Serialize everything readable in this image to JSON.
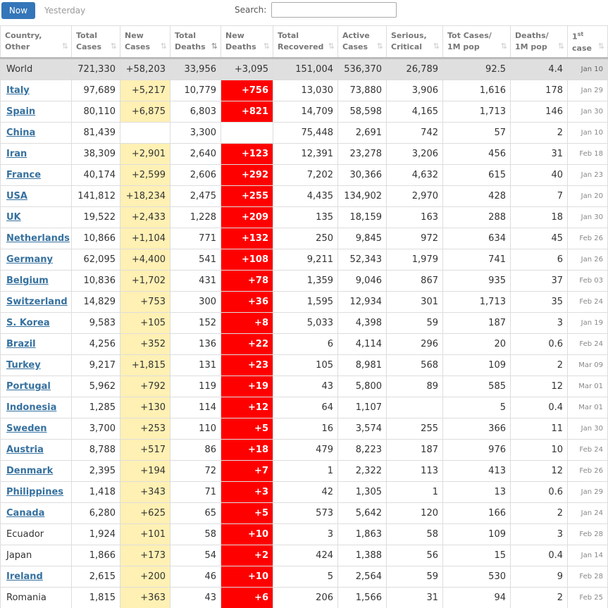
{
  "toolbar": {
    "tabs": [
      "Now",
      "Yesterday"
    ],
    "search_label": "Search:"
  },
  "table": {
    "headers": [
      {
        "top": "Country,",
        "bottom": "Other"
      },
      {
        "top": "Total",
        "bottom": "Cases"
      },
      {
        "top": "New",
        "bottom": "Cases"
      },
      {
        "top": "Total",
        "bottom": "Deaths"
      },
      {
        "top": "New",
        "bottom": "Deaths"
      },
      {
        "top": "Total",
        "bottom": "Recovered"
      },
      {
        "top": "Active",
        "bottom": "Cases"
      },
      {
        "top": "Serious,",
        "bottom": "Critical"
      },
      {
        "top": "Tot Cases/",
        "bottom": "1M pop"
      },
      {
        "top": "Deaths/",
        "bottom": "1M pop"
      },
      {
        "top": "1",
        "sup": "st",
        "bottom": "case"
      }
    ],
    "rows": [
      {
        "link": false,
        "total": true,
        "cells": [
          "World",
          "721,330",
          "+58,203",
          "33,956",
          "+3,095",
          "151,004",
          "536,370",
          "26,789",
          "92.5",
          "4.4",
          "Jan 10"
        ]
      },
      {
        "link": true,
        "cells": [
          "Italy",
          "97,689",
          "+5,217",
          "10,779",
          "+756",
          "13,030",
          "73,880",
          "3,906",
          "1,616",
          "178",
          "Jan 29"
        ]
      },
      {
        "link": true,
        "cells": [
          "Spain",
          "80,110",
          "+6,875",
          "6,803",
          "+821",
          "14,709",
          "58,598",
          "4,165",
          "1,713",
          "146",
          "Jan 30"
        ]
      },
      {
        "link": true,
        "cells": [
          "China",
          "81,439",
          null,
          "3,300",
          null,
          "75,448",
          "2,691",
          "742",
          "57",
          "2",
          "Jan 10"
        ]
      },
      {
        "link": true,
        "cells": [
          "Iran",
          "38,309",
          "+2,901",
          "2,640",
          "+123",
          "12,391",
          "23,278",
          "3,206",
          "456",
          "31",
          "Feb 18"
        ]
      },
      {
        "link": true,
        "cells": [
          "France",
          "40,174",
          "+2,599",
          "2,606",
          "+292",
          "7,202",
          "30,366",
          "4,632",
          "615",
          "40",
          "Jan 23"
        ]
      },
      {
        "link": true,
        "cells": [
          "USA",
          "141,812",
          "+18,234",
          "2,475",
          "+255",
          "4,435",
          "134,902",
          "2,970",
          "428",
          "7",
          "Jan 20"
        ]
      },
      {
        "link": true,
        "cells": [
          "UK",
          "19,522",
          "+2,433",
          "1,228",
          "+209",
          "135",
          "18,159",
          "163",
          "288",
          "18",
          "Jan 30"
        ]
      },
      {
        "link": true,
        "cells": [
          "Netherlands",
          "10,866",
          "+1,104",
          "771",
          "+132",
          "250",
          "9,845",
          "972",
          "634",
          "45",
          "Feb 26"
        ]
      },
      {
        "link": true,
        "cells": [
          "Germany",
          "62,095",
          "+4,400",
          "541",
          "+108",
          "9,211",
          "52,343",
          "1,979",
          "741",
          "6",
          "Jan 26"
        ]
      },
      {
        "link": true,
        "cells": [
          "Belgium",
          "10,836",
          "+1,702",
          "431",
          "+78",
          "1,359",
          "9,046",
          "867",
          "935",
          "37",
          "Feb 03"
        ]
      },
      {
        "link": true,
        "cells": [
          "Switzerland",
          "14,829",
          "+753",
          "300",
          "+36",
          "1,595",
          "12,934",
          "301",
          "1,713",
          "35",
          "Feb 24"
        ]
      },
      {
        "link": true,
        "cells": [
          "S. Korea",
          "9,583",
          "+105",
          "152",
          "+8",
          "5,033",
          "4,398",
          "59",
          "187",
          "3",
          "Jan 19"
        ]
      },
      {
        "link": true,
        "cells": [
          "Brazil",
          "4,256",
          "+352",
          "136",
          "+22",
          "6",
          "4,114",
          "296",
          "20",
          "0.6",
          "Feb 24"
        ]
      },
      {
        "link": true,
        "cells": [
          "Turkey",
          "9,217",
          "+1,815",
          "131",
          "+23",
          "105",
          "8,981",
          "568",
          "109",
          "2",
          "Mar 09"
        ]
      },
      {
        "link": true,
        "cells": [
          "Portugal",
          "5,962",
          "+792",
          "119",
          "+19",
          "43",
          "5,800",
          "89",
          "585",
          "12",
          "Mar 01"
        ]
      },
      {
        "link": true,
        "cells": [
          "Indonesia",
          "1,285",
          "+130",
          "114",
          "+12",
          "64",
          "1,107",
          null,
          "5",
          "0.4",
          "Mar 01"
        ]
      },
      {
        "link": true,
        "cells": [
          "Sweden",
          "3,700",
          "+253",
          "110",
          "+5",
          "16",
          "3,574",
          "255",
          "366",
          "11",
          "Jan 30"
        ]
      },
      {
        "link": true,
        "cells": [
          "Austria",
          "8,788",
          "+517",
          "86",
          "+18",
          "479",
          "8,223",
          "187",
          "976",
          "10",
          "Feb 24"
        ]
      },
      {
        "link": true,
        "cells": [
          "Denmark",
          "2,395",
          "+194",
          "72",
          "+7",
          "1",
          "2,322",
          "113",
          "413",
          "12",
          "Feb 26"
        ]
      },
      {
        "link": true,
        "cells": [
          "Philippines",
          "1,418",
          "+343",
          "71",
          "+3",
          "42",
          "1,305",
          "1",
          "13",
          "0.6",
          "Jan 29"
        ]
      },
      {
        "link": true,
        "cells": [
          "Canada",
          "6,280",
          "+625",
          "65",
          "+5",
          "573",
          "5,642",
          "120",
          "166",
          "2",
          "Jan 24"
        ]
      },
      {
        "link": false,
        "cells": [
          "Ecuador",
          "1,924",
          "+101",
          "58",
          "+10",
          "3",
          "1,863",
          "58",
          "109",
          "3",
          "Feb 28"
        ]
      },
      {
        "link": false,
        "cells": [
          "Japan",
          "1,866",
          "+173",
          "54",
          "+2",
          "424",
          "1,388",
          "56",
          "15",
          "0.4",
          "Jan 14"
        ]
      },
      {
        "link": true,
        "cells": [
          "Ireland",
          "2,615",
          "+200",
          "46",
          "+10",
          "5",
          "2,564",
          "59",
          "530",
          "9",
          "Feb 28"
        ]
      },
      {
        "link": false,
        "cells": [
          "Romania",
          "1,815",
          "+363",
          "43",
          "+6",
          "206",
          "1,566",
          "31",
          "94",
          "2",
          "Feb 25"
        ]
      }
    ]
  }
}
